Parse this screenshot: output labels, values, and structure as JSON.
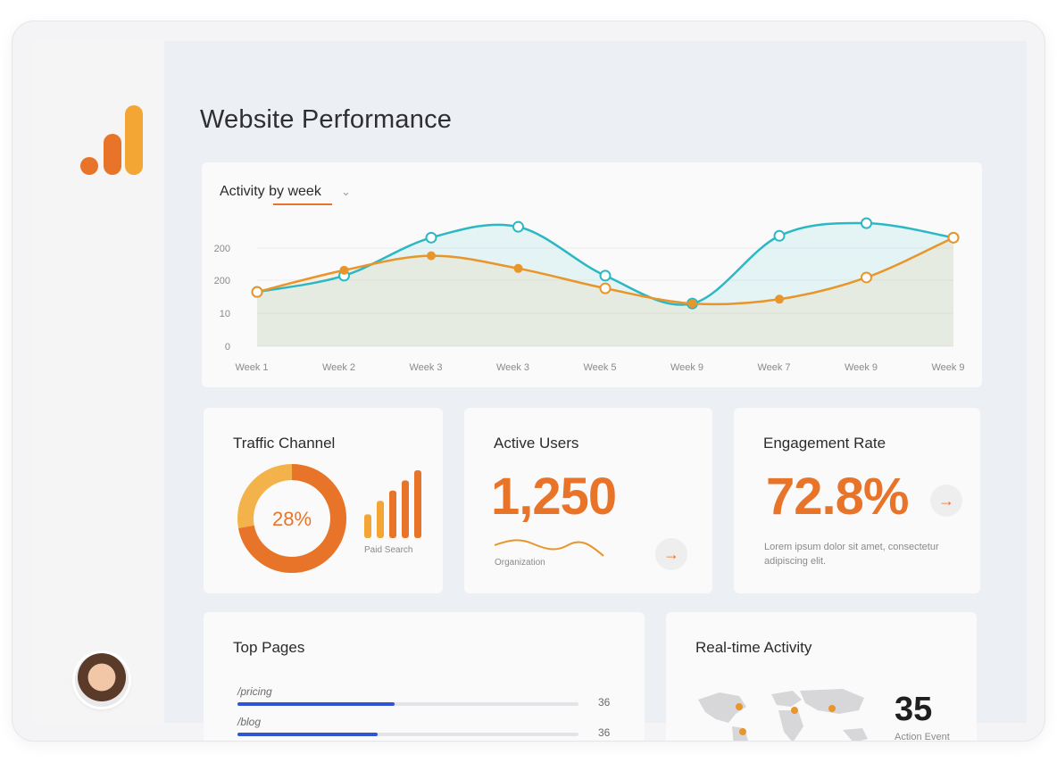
{
  "page": {
    "title": "Website Performance"
  },
  "chart": {
    "title": "Activity by week",
    "dropdown_icon": "chevron-down-icon"
  },
  "chart_data": {
    "type": "line",
    "title": "Activity by week",
    "x": [
      "Week 1",
      "Week 2",
      "Week 3",
      "Week 3",
      "Week 5",
      "Week 9",
      "Week 7",
      "Week 9",
      "Week 9"
    ],
    "y_ticks": [
      "200",
      "200",
      "10",
      "0"
    ],
    "series": [
      {
        "values": [
          150,
          195,
          300,
          330,
          195,
          118,
          305,
          340,
          300
        ]
      },
      {
        "values": [
          150,
          210,
          250,
          215,
          160,
          118,
          130,
          190,
          300
        ]
      }
    ],
    "colors": [
      "#2bb8c4",
      "#e8952a"
    ],
    "grid": true,
    "area_fill": true
  },
  "traffic": {
    "title": "Traffic Channel",
    "donut_percent": 28,
    "donut_label": "28%",
    "bars_label": "Paid Search",
    "bar_heights": [
      0.35,
      0.55,
      0.7,
      0.85,
      1.0
    ]
  },
  "active_users": {
    "title": "Active Users",
    "value": "1,250",
    "caption": "Organization",
    "arrow": "→"
  },
  "engagement": {
    "title": "Engagement Rate",
    "value": "72.8%",
    "description": "Lorem ipsum dolor sit amet, consectetur adipiscing elit.",
    "arrow": "→"
  },
  "top_pages": {
    "title": "Top Pages",
    "rows": [
      {
        "path": "/pricing",
        "count": "36",
        "fraction": 0.46
      },
      {
        "path": "/blog",
        "count": "36",
        "fraction": 0.41
      }
    ]
  },
  "realtime": {
    "title": "Real-time Activity",
    "value": "35",
    "label": "Action Event"
  },
  "colors": {
    "accent": "#e8742a",
    "accent_light": "#f3a633",
    "teal": "#2bb8c4",
    "blue_bar": "#2f55d4"
  }
}
